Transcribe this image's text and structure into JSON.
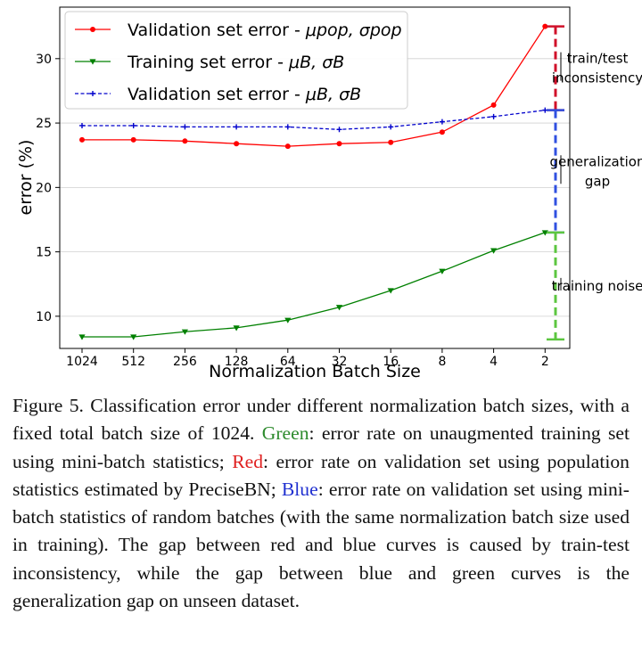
{
  "chart_data": {
    "type": "line",
    "xlabel": "Normalization Batch Size",
    "ylabel": "error (%)",
    "categories": [
      "1024",
      "512",
      "256",
      "128",
      "64",
      "32",
      "16",
      "8",
      "4",
      "2"
    ],
    "yticks": [
      10,
      15,
      20,
      25,
      30
    ],
    "ylim": [
      7.5,
      34
    ],
    "grid": true,
    "legend_position": "top-left",
    "series": [
      {
        "name": "Validation set error - μ_pop, σ_pop",
        "legend_main": "Validation set error - ",
        "legend_math": "μpop, σpop",
        "color": "#ff0000",
        "marker": "circle",
        "linestyle": "solid",
        "values": [
          23.7,
          23.7,
          23.6,
          23.4,
          23.2,
          23.4,
          23.5,
          24.3,
          26.4,
          32.5
        ]
      },
      {
        "name": "Training set error - μ_B, σ_B",
        "legend_main": "Training set error - ",
        "legend_math": "μB, σB",
        "color": "#008000",
        "marker": "triangle-down",
        "linestyle": "solid",
        "values": [
          8.4,
          8.4,
          8.8,
          9.1,
          9.7,
          10.7,
          12.0,
          13.5,
          15.1,
          16.5
        ]
      },
      {
        "name": "Validation set error - μ_B, σ_B",
        "legend_main": "Validation set error - ",
        "legend_math": "μB, σB",
        "color": "#0000cc",
        "marker": "plus",
        "linestyle": "dashed",
        "values": [
          24.8,
          24.8,
          24.7,
          24.7,
          24.7,
          24.5,
          24.7,
          25.1,
          25.5,
          26.0
        ]
      }
    ],
    "annotations": [
      {
        "label_lines": [
          "train/test",
          "inconsistency"
        ],
        "from": 26.0,
        "to": 32.5,
        "color": "#d0102a"
      },
      {
        "label_lines": [
          "generalization",
          "gap"
        ],
        "from": 16.5,
        "to": 26.0,
        "color": "#3050e0"
      },
      {
        "label_lines": [
          "training noise"
        ],
        "from": 8.2,
        "to": 16.5,
        "color": "#5cc640"
      }
    ]
  },
  "caption": {
    "lead": "Figure 5.  Classification error under different normalization batch sizes, with a fixed total batch size of 1024. ",
    "green_word": "Green",
    "part2": ": error rate on unaugmented training set using mini-batch statistics; ",
    "red_word": "Red",
    "part3": ": error rate on validation set using population statistics estimated by PreciseBN; ",
    "blue_word": "Blue",
    "part4": ": error rate on validation set using mini-batch statistics of random batches (with the same normalization batch size used in training). The gap between red and blue curves is caused by train-test inconsistency, while the gap between blue and green curves is the generalization gap on unseen dataset."
  }
}
